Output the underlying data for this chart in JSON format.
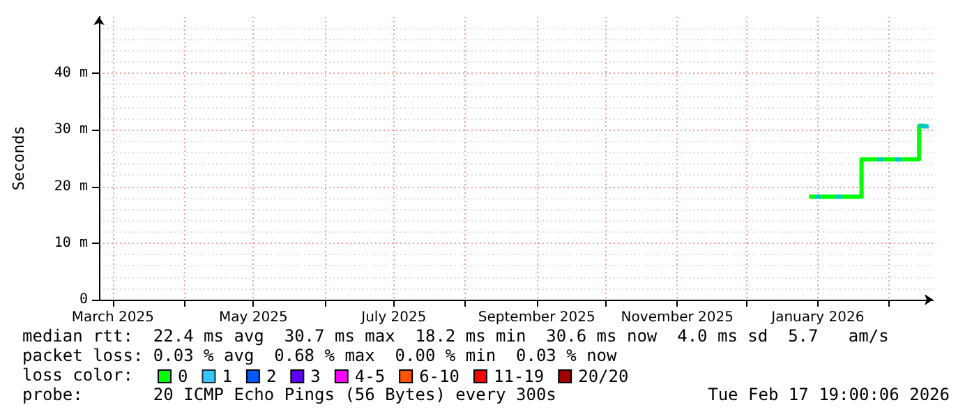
{
  "chart_data": {
    "type": "step",
    "ylabel": "Seconds",
    "legend_title": "loss color:",
    "xlim": [
      "2025-02-23",
      "2026-02-20"
    ],
    "xticks": [
      {
        "value": "2025-03-01",
        "label": "March 2025"
      },
      {
        "value": "2025-04-01",
        "label": null
      },
      {
        "value": "2025-05-01",
        "label": "May 2025"
      },
      {
        "value": "2025-06-01",
        "label": null
      },
      {
        "value": "2025-07-01",
        "label": "July 2025"
      },
      {
        "value": "2025-08-01",
        "label": null
      },
      {
        "value": "2025-09-01",
        "label": "September 2025"
      },
      {
        "value": "2025-10-01",
        "label": null
      },
      {
        "value": "2025-11-01",
        "label": "November 2025"
      },
      {
        "value": "2025-12-01",
        "label": null
      },
      {
        "value": "2026-01-01",
        "label": "January 2026"
      },
      {
        "value": "2026-02-01",
        "label": null
      }
    ],
    "ylim": [
      0,
      50
    ],
    "yticks": [
      0,
      {
        "value": 10,
        "label": "10 m"
      },
      {
        "value": 20,
        "label": "20 m"
      },
      {
        "value": 30,
        "label": "30 m"
      },
      {
        "value": 40,
        "label": "40 m"
      }
    ],
    "grid": true,
    "legend": "bottom left",
    "line_style": "solid",
    "series": [
      {
        "name": "0",
        "color": "#00ff00",
        "x": [
          "2025-12-29",
          "2026-01-20",
          "2026-02-14",
          "2026-02-17"
        ],
        "values": [
          18.2,
          24.8,
          30.7,
          30.6
        ]
      },
      {
        "name": "1",
        "type": "scatter",
        "color": "#00b8ff",
        "x": [
          "2026-01-01",
          "2026-01-10",
          "2026-01-28",
          "2026-02-05",
          "2026-02-15",
          "2026-02-17"
        ],
        "values": [
          18.2,
          18.2,
          24.8,
          24.8,
          30.7,
          30.6
        ]
      },
      {
        "name": "2",
        "color": "#0059ff"
      },
      {
        "name": "3",
        "color": "#5e00ff"
      },
      {
        "name": "4-5",
        "color": "#ff00ff"
      },
      {
        "name": "6-10",
        "color": "#ff5500"
      },
      {
        "name": "11-19",
        "color": "#ff0000"
      },
      {
        "name": "20/20",
        "color": "#a10000"
      }
    ],
    "annotations": [
      "median rtt:  22.4 ms avg  30.7 ms max  18.2 ms min  30.6 ms now  4.0 ms sd  5.7   am/s",
      "packet loss: 0.03 % avg  0.68 % max  0.00 % min  0.03 % now",
      "probe:       20 ICMP Echo Pings (56 Bytes) every 300s",
      "Tue Feb 17 19:00:06 2026"
    ]
  }
}
